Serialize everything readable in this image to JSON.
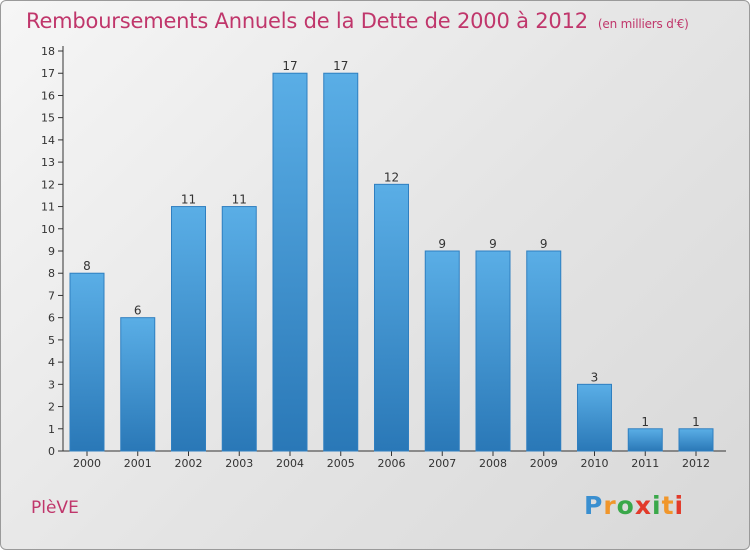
{
  "chart_data": {
    "type": "bar",
    "title": "Remboursements Annuels de la Dette de 2000 à 2012",
    "subtitle": "(en milliers d'€)",
    "categories": [
      "2000",
      "2001",
      "2002",
      "2003",
      "2004",
      "2005",
      "2006",
      "2007",
      "2008",
      "2009",
      "2010",
      "2011",
      "2012"
    ],
    "values": [
      8,
      6,
      11,
      11,
      17,
      17,
      12,
      9,
      9,
      9,
      3,
      1,
      1
    ],
    "ylim": [
      0,
      18
    ],
    "yticks": [
      0,
      1,
      2,
      3,
      4,
      5,
      6,
      7,
      8,
      9,
      10,
      11,
      12,
      13,
      14,
      15,
      16,
      17,
      18
    ],
    "xlabel": "",
    "ylabel": "",
    "grid": false,
    "colors": {
      "bar_top": "#5aaee6",
      "bar_bottom": "#2a78b7",
      "bar_border": "#2f7fc0"
    }
  },
  "footer": {
    "commune": "PlèVE",
    "brand_letters": [
      "P",
      "r",
      "o",
      "x",
      "i",
      "t",
      "i"
    ],
    "brand_colors": [
      "#3a8fd0",
      "#f0962b",
      "#3aa84a",
      "#e23a2a",
      "#3aa84a",
      "#f0962b",
      "#e23a2a"
    ]
  },
  "colors": {
    "title": "#c0366b",
    "axis": "#333333"
  }
}
